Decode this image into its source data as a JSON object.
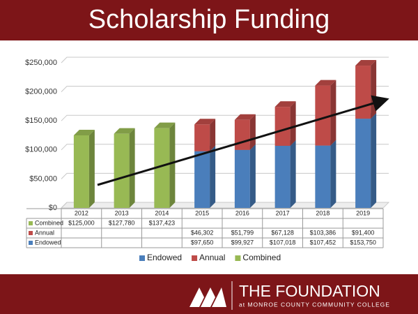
{
  "chart_data": {
    "type": "bar",
    "stacked": true,
    "title": "Scholarship Funding",
    "categories": [
      "2012",
      "2013",
      "2014",
      "2015",
      "2016",
      "2017",
      "2018",
      "2019"
    ],
    "series": [
      {
        "name": "Endowed",
        "color": "#4a7ebb",
        "values": [
          null,
          null,
          null,
          97650,
          99927,
          107018,
          107452,
          153750
        ],
        "value_labels": [
          null,
          null,
          null,
          "$97,650",
          "$99,927",
          "$107,018",
          "$107,452",
          "$153,750"
        ]
      },
      {
        "name": "Annual",
        "color": "#be4b48",
        "values": [
          null,
          null,
          null,
          46302,
          51799,
          67128,
          103386,
          91400
        ],
        "value_labels": [
          null,
          null,
          null,
          "$46,302",
          "$51,799",
          "$67,128",
          "$103,386",
          "$91,400"
        ]
      },
      {
        "name": "Combined",
        "color": "#98b954",
        "values": [
          125000,
          127780,
          137423,
          null,
          null,
          null,
          null,
          null
        ],
        "value_labels": [
          "$125,000",
          "$127,780",
          "$137,423",
          null,
          null,
          null,
          null,
          null
        ]
      }
    ],
    "ylim": [
      0,
      250000
    ],
    "yticks": [
      {
        "value": 0,
        "label": "$0"
      },
      {
        "value": 50000,
        "label": "$50,000"
      },
      {
        "value": 100000,
        "label": "$100,000"
      },
      {
        "value": 150000,
        "label": "$150,000"
      },
      {
        "value": 200000,
        "label": "$200,000"
      },
      {
        "value": 250000,
        "label": "$250,000"
      }
    ],
    "grid": true,
    "legend": "bottom",
    "data_table": true
  },
  "footer": {
    "logo_main": "THE FOUNDATION",
    "logo_sub": "at MONROE COUNTY COMMUNITY COLLEGE"
  }
}
